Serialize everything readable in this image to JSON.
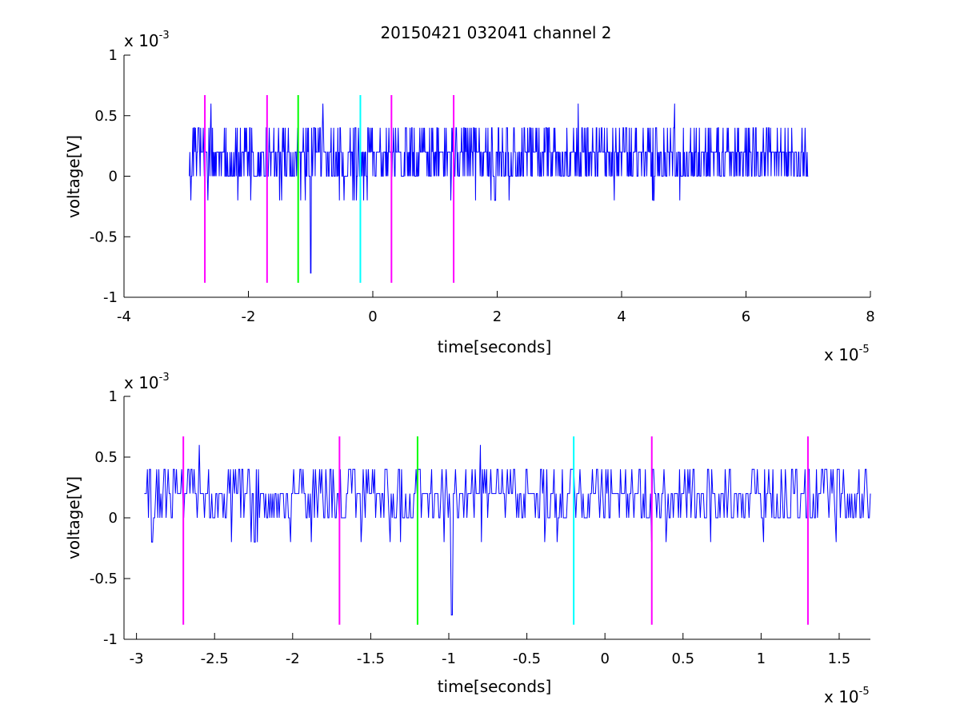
{
  "chart_data": [
    {
      "type": "line",
      "title": "20150421 032041 channel 2",
      "xlabel": "time[seconds]",
      "ylabel": "voltage[V]",
      "x_multiplier": "x 10",
      "x_multiplier_exp": "-5",
      "y_multiplier": "x 10",
      "y_multiplier_exp": "-3",
      "xlim": [
        -4,
        8
      ],
      "ylim": [
        -1,
        1
      ],
      "xticks": [
        -4,
        -2,
        0,
        2,
        4,
        6,
        8
      ],
      "xtick_labels": [
        "-4",
        "-2",
        "0",
        "2",
        "4",
        "6",
        "8"
      ],
      "yticks": [
        -1,
        -0.5,
        0,
        0.5,
        1
      ],
      "ytick_labels": [
        "-1",
        "-0.5",
        "0",
        "0.5",
        "1"
      ],
      "signal": {
        "color": "#0000ff",
        "x_range": [
          -2.95,
          7.0
        ],
        "levels": [
          -0.2,
          0,
          0.2,
          0.4
        ],
        "spikes": [
          {
            "x": -1.0,
            "y": -0.8
          },
          {
            "x": -0.8,
            "y": 0.6
          },
          {
            "x": 3.3,
            "y": 0.6
          },
          {
            "x": 4.85,
            "y": 0.6
          },
          {
            "x": -2.6,
            "y": 0.6
          }
        ]
      },
      "markers": [
        {
          "x": -2.7,
          "color": "#ff00ff"
        },
        {
          "x": -1.7,
          "color": "#ff00ff"
        },
        {
          "x": -1.2,
          "color": "#00ff00"
        },
        {
          "x": -0.2,
          "color": "#00ffff"
        },
        {
          "x": 0.3,
          "color": "#ff00ff"
        },
        {
          "x": 1.3,
          "color": "#ff00ff"
        }
      ],
      "marker_range": [
        -0.88,
        0.67
      ]
    },
    {
      "type": "line",
      "title": "",
      "xlabel": "time[seconds]",
      "ylabel": "voltage[V]",
      "x_multiplier": "x 10",
      "x_multiplier_exp": "-5",
      "y_multiplier": "x 10",
      "y_multiplier_exp": "-3",
      "xlim": [
        -3.08,
        1.7
      ],
      "ylim": [
        -1,
        1
      ],
      "xticks": [
        -3,
        -2.5,
        -2,
        -1.5,
        -1,
        -0.5,
        0,
        0.5,
        1,
        1.5
      ],
      "xtick_labels": [
        "-3",
        "-2.5",
        "-2",
        "-1.5",
        "-1",
        "-0.5",
        "0",
        "0.5",
        "1",
        "1.5"
      ],
      "yticks": [
        -1,
        -0.5,
        0,
        0.5,
        1
      ],
      "ytick_labels": [
        "-1",
        "-0.5",
        "0",
        "0.5",
        "1"
      ],
      "signal": {
        "color": "#0000ff",
        "x_range": [
          -2.95,
          1.7
        ],
        "levels": [
          -0.2,
          0,
          0.2,
          0.4
        ],
        "spikes": [
          {
            "x": -0.98,
            "y": -0.8
          },
          {
            "x": -0.8,
            "y": 0.6
          },
          {
            "x": -2.6,
            "y": 0.6
          },
          {
            "x": -2.9,
            "y": -0.2
          }
        ]
      },
      "markers": [
        {
          "x": -2.7,
          "color": "#ff00ff"
        },
        {
          "x": -1.7,
          "color": "#ff00ff"
        },
        {
          "x": -1.2,
          "color": "#00ff00"
        },
        {
          "x": -0.2,
          "color": "#00ffff"
        },
        {
          "x": 0.3,
          "color": "#ff00ff"
        },
        {
          "x": 1.3,
          "color": "#ff00ff"
        }
      ],
      "marker_range": [
        -0.88,
        0.67
      ]
    }
  ]
}
